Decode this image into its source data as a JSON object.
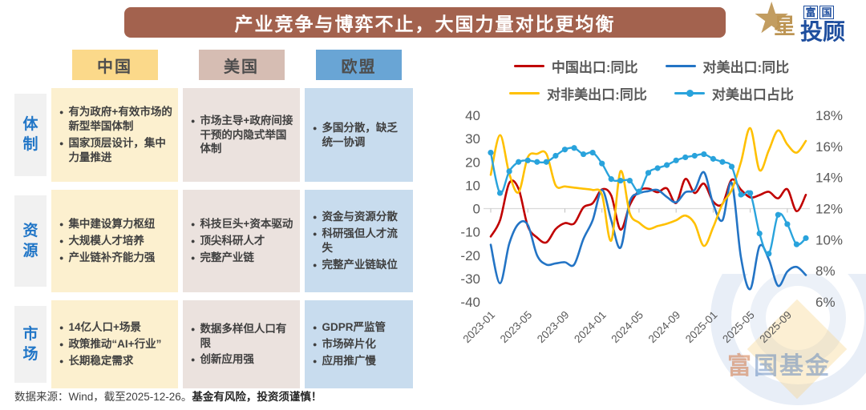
{
  "title": {
    "text": "产业竞争与博弈不止，大国力量对比更均衡"
  },
  "brand": {
    "top_chars": [
      "富",
      "国"
    ],
    "star_char": "星",
    "rest": "投顾"
  },
  "watermark": {
    "text_first": "富",
    "text_rest": "国基金"
  },
  "table": {
    "columns": [
      {
        "key": "china",
        "label": "中国",
        "header_bg": "#FBD98A",
        "cell_bg": "#FCF0CF"
      },
      {
        "key": "us",
        "label": "美国",
        "header_bg": "#D6BDB3",
        "cell_bg": "#EBE2DE"
      },
      {
        "key": "eu",
        "label": "欧盟",
        "header_bg": "#69A5D5",
        "cell_bg": "#C8DCEE"
      }
    ],
    "rows": [
      {
        "label": "体制",
        "china": [
          "有为政府+有效市场的新型举国体制",
          "国家顶层设计，集中力量推进"
        ],
        "us": [
          "市场主导+政府间接干预的内隐式举国体制"
        ],
        "eu": [
          "多国分散，缺乏统一协调"
        ]
      },
      {
        "label": "资源",
        "china": [
          "集中建设算力枢纽",
          "大规模人才培养",
          "产业链补齐能力强"
        ],
        "us": [
          "科技巨头+资本驱动",
          "顶尖科研人才",
          "完整产业链"
        ],
        "eu": [
          "资金与资源分散",
          "科研强但人才流失",
          "完整产业链缺位"
        ]
      },
      {
        "label": "市场",
        "china": [
          "14亿人口+场景",
          "政策推动“AI+行业”",
          "长期稳定需求"
        ],
        "us": [
          "数据多样但人口有限",
          "创新应用强"
        ],
        "eu": [
          "GDPR严监管",
          "市场碎片化",
          "应用推广慢"
        ]
      }
    ]
  },
  "footer": {
    "source": "数据来源：Wind，截至2025-12-26。",
    "risk": "基金有风险，投资须谨慎！"
  },
  "chart_data": {
    "type": "line",
    "x": [
      "2023-01",
      "2023-02",
      "2023-03",
      "2023-04",
      "2023-05",
      "2023-06",
      "2023-07",
      "2023-08",
      "2023-09",
      "2023-10",
      "2023-11",
      "2023-12",
      "2024-01",
      "2024-02",
      "2024-03",
      "2024-04",
      "2024-05",
      "2024-06",
      "2024-07",
      "2024-08",
      "2024-09",
      "2024-10",
      "2024-11",
      "2024-12",
      "2025-01",
      "2025-02",
      "2025-03",
      "2025-04",
      "2025-05",
      "2025-06",
      "2025-07",
      "2025-08",
      "2025-09",
      "2025-10",
      "2025-11"
    ],
    "x_tick_labels": [
      "2023-01",
      "2023-05",
      "2023-09",
      "2024-01",
      "2024-05",
      "2024-09",
      "2025-01",
      "2025-05",
      "2025-09"
    ],
    "left_axis": {
      "min": -40,
      "max": 40,
      "step": 10,
      "tick_labels": [
        "40",
        "30",
        "20",
        "10",
        "0",
        "-10",
        "-20",
        "-30",
        "-40"
      ]
    },
    "right_axis": {
      "min": 6,
      "max": 18,
      "step": 2,
      "tick_labels": [
        "18%",
        "16%",
        "14%",
        "12%",
        "10%",
        "8%",
        "6%"
      ]
    },
    "grid": "zero-line-only",
    "legend_position": "top",
    "series": [
      {
        "key": "china-export-yoy",
        "name": "中国出口:同比",
        "axis": "left",
        "color": "#C00000",
        "marker": false,
        "values": [
          -12.0,
          -5.0,
          11.0,
          8.5,
          -7.5,
          -12.4,
          -14.5,
          -8.8,
          -6.2,
          -6.4,
          0.5,
          2.3,
          8.2,
          5.6,
          -9.0,
          1.5,
          7.6,
          8.6,
          7.0,
          8.7,
          2.4,
          12.7,
          6.7,
          10.7,
          3.0,
          2.0,
          12.4,
          8.1,
          4.8,
          5.8,
          7.2,
          4.4,
          8.3,
          -1.1,
          5.9
        ]
      },
      {
        "key": "us-export-yoy",
        "name": "对美出口:同比",
        "axis": "left",
        "color": "#2374C5",
        "marker": false,
        "values": [
          -15.5,
          -32.0,
          -15.0,
          -6.5,
          -7.0,
          -20.0,
          -24.0,
          -23.5,
          -23.0,
          -24.0,
          -13.0,
          -5.0,
          8.0,
          -5.0,
          -16.8,
          3.0,
          6.5,
          7.5,
          8.0,
          5.0,
          2.7,
          7.0,
          8.0,
          15.6,
          2.0,
          -5.0,
          11.0,
          -21.0,
          -34.5,
          -16.1,
          -21.7,
          -33.1,
          -27.0,
          -25.0,
          -28.5
        ]
      },
      {
        "key": "non-us-export-yoy",
        "name": "对非美出口:同比",
        "axis": "left",
        "color": "#FFC000",
        "marker": false,
        "values": [
          14.5,
          31.5,
          15.0,
          7.0,
          22.0,
          23.5,
          23.5,
          10.0,
          9.5,
          9.0,
          8.5,
          8.0,
          6.0,
          -13.7,
          16.0,
          -2.0,
          -6.0,
          -8.7,
          -7.5,
          -6.5,
          -5.0,
          -3.0,
          -6.4,
          -16.0,
          -8.0,
          2.0,
          8.0,
          20.0,
          34.5,
          16.5,
          25.0,
          33.5,
          27.5,
          24.0,
          29.0
        ]
      },
      {
        "key": "us-export-share",
        "name": "对美出口占比",
        "axis": "right",
        "color": "#29A3DC",
        "marker": true,
        "values": [
          15.6,
          13.0,
          14.4,
          15.0,
          15.1,
          15.0,
          15.0,
          15.4,
          15.8,
          15.9,
          15.5,
          15.6,
          14.9,
          13.9,
          13.8,
          13.8,
          13.1,
          14.3,
          14.6,
          14.8,
          15.1,
          15.3,
          15.4,
          15.5,
          15.2,
          15.0,
          14.7,
          12.9,
          13.0,
          10.4,
          9.1,
          11.6,
          11.0,
          9.7,
          10.1
        ]
      }
    ]
  }
}
